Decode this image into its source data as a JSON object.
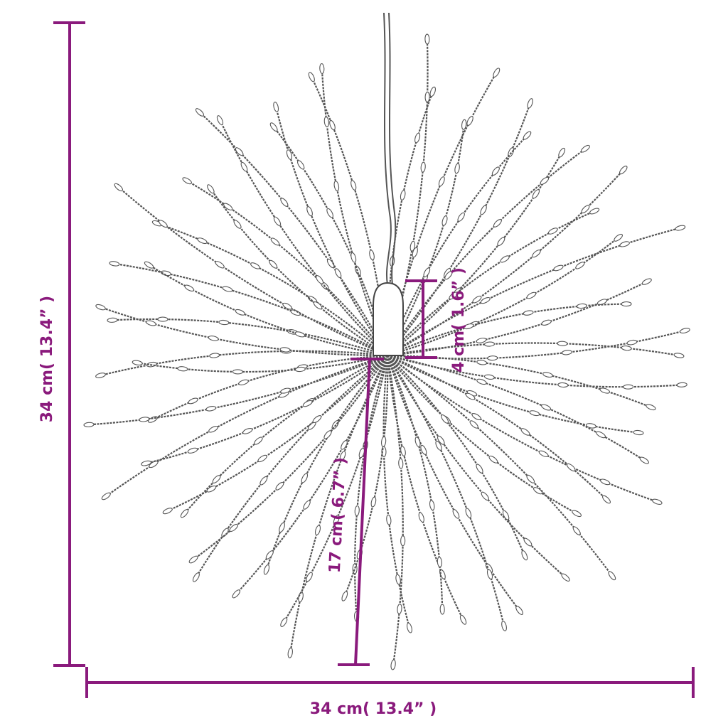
{
  "product": "firework string light",
  "dimension_color": "#8a1a7c",
  "dimensions": {
    "height": "34 cm( 13.4” )",
    "width": "34 cm( 13.4” )",
    "cap_height": "4 cm( 1.6” )",
    "strand_length": "17 cm( 6.7” )"
  }
}
